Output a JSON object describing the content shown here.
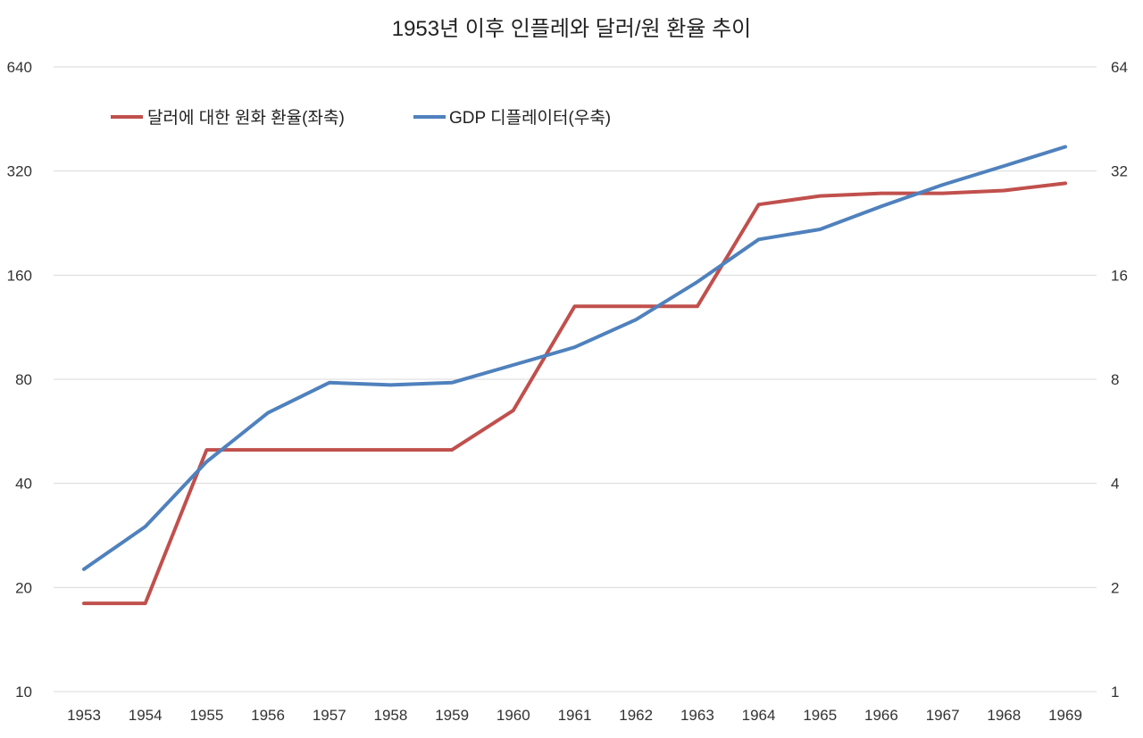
{
  "chart_data": {
    "type": "line",
    "title": "1953년 이후 인플레와 달러/원 환율 추이",
    "categories": [
      "1953",
      "1954",
      "1955",
      "1956",
      "1957",
      "1958",
      "1959",
      "1960",
      "1961",
      "1962",
      "1963",
      "1964",
      "1965",
      "1966",
      "1967",
      "1968",
      "1969"
    ],
    "axes": {
      "left": {
        "scale": "log2",
        "ylim": [
          10,
          640
        ],
        "ticks": [
          "10",
          "20",
          "40",
          "80",
          "160",
          "320",
          "640"
        ]
      },
      "right": {
        "scale": "log2",
        "ylim": [
          1,
          64
        ],
        "ticks": [
          "1",
          "2",
          "4",
          "8",
          "16",
          "32",
          "64"
        ]
      }
    },
    "series": [
      {
        "name": "달러에 대한 원화 환율(좌축)",
        "axis": "left",
        "color": "#C0504D",
        "values": [
          18,
          18,
          50,
          50,
          50,
          50,
          50,
          65,
          130,
          130,
          130,
          256,
          271,
          276,
          276,
          281,
          295
        ]
      },
      {
        "name": "GDP 디플레이터(우축)",
        "axis": "right",
        "color": "#4F81BD",
        "values": [
          2.26,
          3.0,
          4.62,
          6.4,
          7.82,
          7.7,
          7.82,
          8.8,
          9.9,
          11.9,
          15.3,
          20.3,
          21.7,
          25.3,
          29.2,
          33.1,
          37.6
        ]
      }
    ],
    "grid": true,
    "legend_position": "top-left"
  }
}
